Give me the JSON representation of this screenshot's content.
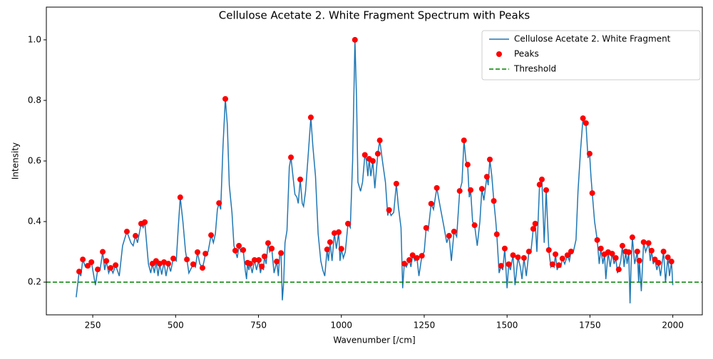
{
  "chart_data": {
    "type": "line",
    "title": "Cellulose Acetate 2. White Fragment Spectrum with Peaks",
    "xlabel": "Wavenumber [/cm]",
    "ylabel": "Intensity",
    "xlim": [
      110,
      2089
    ],
    "ylim": [
      0.092,
      1.108
    ],
    "xticks": [
      250,
      500,
      750,
      1000,
      1250,
      1500,
      1750,
      2000
    ],
    "yticks": [
      0.2,
      0.4,
      0.6,
      0.8,
      {
        "value": 1,
        "label": "1.0"
      }
    ],
    "legend": "upper right",
    "series": [
      {
        "name": "Cellulose Acetate 2. White Fragment",
        "type": "line",
        "color": "#1f77b4",
        "x": [
          200,
          209,
          214,
          220,
          228,
          235,
          240,
          246,
          258,
          265,
          272,
          280,
          286,
          291,
          298,
          304,
          311,
          319,
          330,
          340,
          353,
          365,
          372,
          379,
          385,
          396,
          402,
          407,
          418,
          425,
          430,
          436,
          441,
          447,
          452,
          458,
          465,
          471,
          478,
          485,
          493,
          502,
          508,
          514,
          522,
          530,
          534,
          540,
          553,
          560,
          566,
          573,
          581,
          586,
          590,
          598,
          607,
          614,
          620,
          626,
          631,
          636,
          643,
          650,
          656,
          662,
          670,
          676,
          680,
          686,
          691,
          697,
          704,
          710,
          714,
          717,
          721,
          725,
          731,
          738,
          744,
          751,
          756,
          760,
          765,
          768,
          773,
          779,
          784,
          790,
          797,
          805,
          810,
          814,
          818,
          822,
          826,
          830,
          836,
          843,
          848,
          854,
          860,
          866,
          870,
          876,
          882,
          886,
          892,
          900,
          908,
          914,
          922,
          930,
          938,
          944,
          950,
          957,
          961,
          966,
          972,
          979,
          985,
          992,
          996,
          1000,
          1006,
          1012,
          1020,
          1027,
          1034,
          1041,
          1046,
          1050,
          1058,
          1064,
          1071,
          1076,
          1080,
          1084,
          1089,
          1095,
          1101,
          1105,
          1110,
          1116,
          1124,
          1133,
          1140,
          1144,
          1150,
          1158,
          1166,
          1172,
          1180,
          1185,
          1190,
          1196,
          1205,
          1210,
          1215,
          1222,
          1228,
          1234,
          1243,
          1250,
          1256,
          1262,
          1271,
          1278,
          1288,
          1298,
          1310,
          1318,
          1325,
          1332,
          1340,
          1348,
          1357,
          1364,
          1370,
          1376,
          1381,
          1386,
          1390,
          1396,
          1402,
          1410,
          1418,
          1424,
          1430,
          1439,
          1443,
          1448,
          1454,
          1460,
          1466,
          1469,
          1476,
          1482,
          1487,
          1493,
          1500,
          1505,
          1510,
          1518,
          1524,
          1533,
          1540,
          1545,
          1551,
          1558,
          1566,
          1572,
          1579,
          1585,
          1590,
          1598,
          1605,
          1612,
          1618,
          1622,
          1626,
          1632,
          1637,
          1642,
          1646,
          1651,
          1656,
          1662,
          1667,
          1674,
          1682,
          1688,
          1693,
          1700,
          1708,
          1714,
          1722,
          1729,
          1733,
          1738,
          1744,
          1749,
          1753,
          1757,
          1764,
          1772,
          1778,
          1783,
          1789,
          1794,
          1798,
          1805,
          1811,
          1817,
          1823,
          1828,
          1833,
          1837,
          1843,
          1848,
          1853,
          1858,
          1862,
          1867,
          1871,
          1874,
          1878,
          1885,
          1893,
          1897,
          1899,
          1905,
          1912,
          1918,
          1927,
          1932,
          1936,
          1941,
          1946,
          1952,
          1957,
          1963,
          1972,
          1978,
          1985,
          1990,
          1996,
          2000
        ],
        "values": [
          0.15,
          0.235,
          0.22,
          0.275,
          0.25,
          0.254,
          0.25,
          0.266,
          0.19,
          0.242,
          0.24,
          0.3,
          0.24,
          0.27,
          0.23,
          0.247,
          0.23,
          0.256,
          0.22,
          0.32,
          0.367,
          0.33,
          0.32,
          0.353,
          0.33,
          0.393,
          0.38,
          0.398,
          0.26,
          0.23,
          0.261,
          0.23,
          0.27,
          0.22,
          0.261,
          0.225,
          0.266,
          0.22,
          0.261,
          0.235,
          0.278,
          0.27,
          0.38,
          0.48,
          0.4,
          0.3,
          0.275,
          0.23,
          0.259,
          0.25,
          0.299,
          0.26,
          0.247,
          0.27,
          0.294,
          0.3,
          0.355,
          0.33,
          0.36,
          0.44,
          0.461,
          0.44,
          0.65,
          0.805,
          0.72,
          0.52,
          0.43,
          0.32,
          0.304,
          0.28,
          0.32,
          0.3,
          0.306,
          0.24,
          0.21,
          0.264,
          0.24,
          0.261,
          0.23,
          0.273,
          0.24,
          0.273,
          0.23,
          0.252,
          0.24,
          0.285,
          0.26,
          0.329,
          0.3,
          0.311,
          0.23,
          0.268,
          0.22,
          0.29,
          0.296,
          0.14,
          0.2,
          0.33,
          0.37,
          0.58,
          0.612,
          0.55,
          0.49,
          0.48,
          0.46,
          0.539,
          0.46,
          0.45,
          0.5,
          0.62,
          0.744,
          0.65,
          0.55,
          0.36,
          0.27,
          0.24,
          0.22,
          0.308,
          0.27,
          0.332,
          0.27,
          0.362,
          0.31,
          0.365,
          0.27,
          0.31,
          0.28,
          0.3,
          0.393,
          0.38,
          0.6,
          1.0,
          0.8,
          0.53,
          0.5,
          0.53,
          0.62,
          0.6,
          0.55,
          0.607,
          0.55,
          0.6,
          0.51,
          0.56,
          0.624,
          0.668,
          0.6,
          0.53,
          0.42,
          0.438,
          0.42,
          0.43,
          0.525,
          0.45,
          0.38,
          0.18,
          0.261,
          0.25,
          0.273,
          0.25,
          0.289,
          0.27,
          0.28,
          0.22,
          0.287,
          0.3,
          0.379,
          0.37,
          0.459,
          0.44,
          0.511,
          0.45,
          0.38,
          0.33,
          0.353,
          0.27,
          0.367,
          0.35,
          0.501,
          0.53,
          0.668,
          0.6,
          0.588,
          0.48,
          0.504,
          0.4,
          0.388,
          0.32,
          0.4,
          0.508,
          0.47,
          0.548,
          0.52,
          0.605,
          0.55,
          0.468,
          0.4,
          0.358,
          0.23,
          0.254,
          0.24,
          0.311,
          0.18,
          0.259,
          0.24,
          0.289,
          0.19,
          0.282,
          0.25,
          0.21,
          0.28,
          0.22,
          0.301,
          0.3,
          0.376,
          0.393,
          0.3,
          0.522,
          0.539,
          0.33,
          0.504,
          0.4,
          0.306,
          0.25,
          0.259,
          0.25,
          0.292,
          0.24,
          0.256,
          0.25,
          0.278,
          0.26,
          0.289,
          0.27,
          0.301,
          0.3,
          0.34,
          0.5,
          0.64,
          0.741,
          0.72,
          0.725,
          0.61,
          0.624,
          0.55,
          0.494,
          0.4,
          0.339,
          0.26,
          0.311,
          0.26,
          0.292,
          0.21,
          0.299,
          0.25,
          0.294,
          0.26,
          0.28,
          0.23,
          0.242,
          0.27,
          0.32,
          0.25,
          0.301,
          0.26,
          0.299,
          0.13,
          0.25,
          0.348,
          0.26,
          0.301,
          0.2,
          0.271,
          0.17,
          0.332,
          0.3,
          0.329,
          0.27,
          0.304,
          0.26,
          0.275,
          0.24,
          0.264,
          0.22,
          0.301,
          0.2,
          0.282,
          0.22,
          0.268,
          0.19
        ]
      },
      {
        "name": "Peaks",
        "type": "scatter",
        "color": "#ff0000",
        "x": [
          209,
          220,
          235,
          246,
          265,
          280,
          291,
          304,
          319,
          353,
          379,
          396,
          407,
          430,
          441,
          452,
          465,
          478,
          493,
          514,
          534,
          553,
          566,
          581,
          590,
          607,
          631,
          650,
          680,
          691,
          704,
          717,
          725,
          738,
          751,
          760,
          768,
          779,
          790,
          805,
          818,
          848,
          876,
          908,
          957,
          966,
          979,
          992,
          1000,
          1020,
          1041,
          1071,
          1084,
          1095,
          1110,
          1116,
          1144,
          1166,
          1190,
          1205,
          1215,
          1228,
          1243,
          1256,
          1271,
          1288,
          1325,
          1340,
          1357,
          1370,
          1381,
          1390,
          1402,
          1424,
          1439,
          1448,
          1460,
          1469,
          1482,
          1493,
          1505,
          1518,
          1533,
          1551,
          1566,
          1579,
          1585,
          1598,
          1605,
          1618,
          1626,
          1637,
          1646,
          1656,
          1667,
          1682,
          1693,
          1729,
          1738,
          1749,
          1757,
          1772,
          1783,
          1794,
          1805,
          1817,
          1828,
          1837,
          1848,
          1858,
          1867,
          1878,
          1893,
          1899,
          1912,
          1927,
          1936,
          1946,
          1957,
          1972,
          1985,
          1996
        ],
        "values": [
          0.235,
          0.275,
          0.254,
          0.266,
          0.242,
          0.3,
          0.27,
          0.247,
          0.256,
          0.367,
          0.353,
          0.393,
          0.398,
          0.261,
          0.27,
          0.261,
          0.266,
          0.261,
          0.278,
          0.48,
          0.275,
          0.259,
          0.299,
          0.247,
          0.294,
          0.355,
          0.461,
          0.805,
          0.304,
          0.32,
          0.306,
          0.264,
          0.261,
          0.273,
          0.273,
          0.252,
          0.285,
          0.329,
          0.311,
          0.268,
          0.296,
          0.612,
          0.539,
          0.744,
          0.308,
          0.332,
          0.362,
          0.365,
          0.31,
          0.393,
          1.0,
          0.62,
          0.607,
          0.6,
          0.624,
          0.668,
          0.438,
          0.525,
          0.261,
          0.273,
          0.289,
          0.28,
          0.287,
          0.379,
          0.459,
          0.511,
          0.353,
          0.367,
          0.501,
          0.668,
          0.588,
          0.504,
          0.388,
          0.508,
          0.548,
          0.605,
          0.468,
          0.358,
          0.254,
          0.311,
          0.259,
          0.289,
          0.282,
          0.28,
          0.301,
          0.376,
          0.393,
          0.522,
          0.539,
          0.504,
          0.306,
          0.259,
          0.292,
          0.256,
          0.278,
          0.289,
          0.301,
          0.741,
          0.725,
          0.624,
          0.494,
          0.339,
          0.311,
          0.292,
          0.299,
          0.294,
          0.28,
          0.242,
          0.32,
          0.301,
          0.299,
          0.348,
          0.301,
          0.271,
          0.332,
          0.329,
          0.304,
          0.275,
          0.264,
          0.301,
          0.282,
          0.268
        ]
      },
      {
        "name": "Threshold",
        "type": "hline",
        "color": "#008000",
        "value": 0.2
      }
    ]
  }
}
